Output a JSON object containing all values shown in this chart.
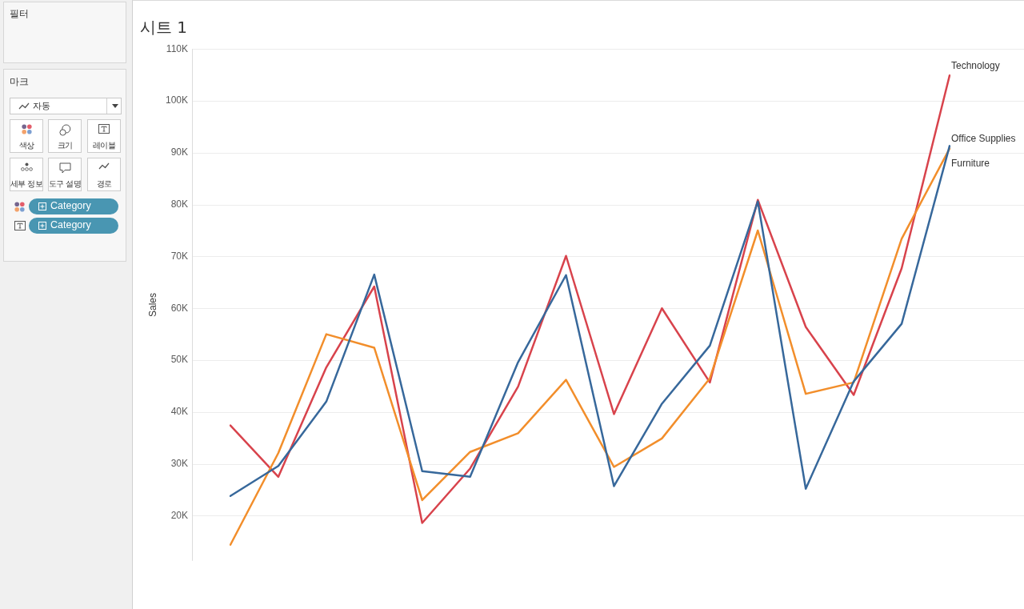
{
  "chart_data": [
    {
      "type": "other",
      "annotations": [
        "필터",
        "마크",
        "자동",
        "색상",
        "크기",
        "레이블",
        "세부 정보",
        "도구 설명",
        "경로",
        "Category",
        "Category"
      ]
    },
    {
      "type": "line",
      "title": "시트 1",
      "ylabel": "Sales",
      "categories": [
        null,
        null,
        null,
        null,
        null,
        null,
        null,
        null,
        null,
        null,
        null,
        null,
        null,
        null,
        null,
        null
      ],
      "series": [
        {
          "name": "Furniture",
          "color": "#37689b",
          "values": [
            23800,
            29600,
            42000,
            66500,
            28600,
            27500,
            49600,
            66400,
            25700,
            41600,
            52800,
            80600,
            25200,
            45900,
            57000,
            91300
          ]
        },
        {
          "name": "Office Supplies",
          "color": "#f28e2b",
          "values": [
            14400,
            32100,
            55000,
            52400,
            23000,
            32300,
            35900,
            46200,
            29400,
            34900,
            46500,
            75000,
            43500,
            45700,
            73400,
            90800
          ]
        },
        {
          "name": "Technology",
          "color": "#d8434c",
          "values": [
            37400,
            27500,
            48600,
            64200,
            18600,
            29100,
            44900,
            70100,
            39600,
            60000,
            45700,
            80900,
            56400,
            43300,
            67700,
            104900
          ]
        }
      ],
      "ylim": [
        11300,
        110000
      ],
      "yticks": [
        {
          "value": 20000,
          "label": "20K"
        },
        {
          "value": 30000,
          "label": "30K"
        },
        {
          "value": 40000,
          "label": "40K"
        },
        {
          "value": 50000,
          "label": "50K"
        },
        {
          "value": 60000,
          "label": "60K"
        },
        {
          "value": 70000,
          "label": "70K"
        },
        {
          "value": 80000,
          "label": "80K"
        },
        {
          "value": 90000,
          "label": "90K"
        },
        {
          "value": 100000,
          "label": "100K"
        },
        {
          "value": 110000,
          "label": "110K"
        }
      ],
      "grid": "y",
      "tick_labels": "y",
      "line_style": "solid"
    }
  ]
}
